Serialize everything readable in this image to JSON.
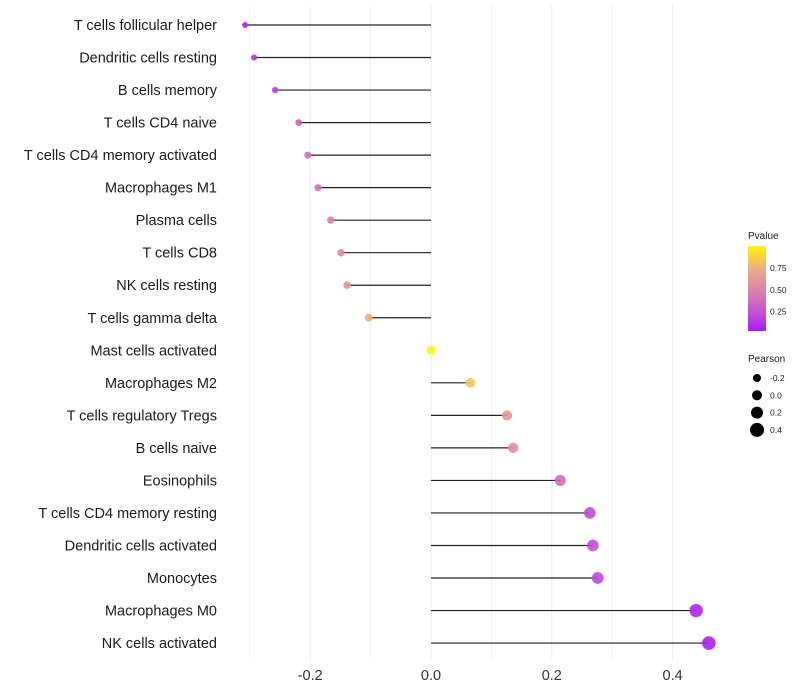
{
  "chart_data": {
    "type": "lollipop",
    "xlabel": "",
    "ylabel": "",
    "xlim": [
      -0.33,
      0.49
    ],
    "xticks": [
      -0.2,
      0.0,
      0.2,
      0.4
    ],
    "xtick_labels": [
      "-0.2",
      "0.0",
      "0.2",
      "0.4"
    ],
    "grid": true,
    "categories": [
      "T cells follicular helper",
      "Dendritic cells resting",
      "B cells memory",
      "T cells CD4 naive",
      "T cells CD4 memory activated",
      "Macrophages M1",
      "Plasma cells",
      "T cells CD8",
      "NK cells resting",
      "T cells gamma delta",
      "Mast cells activated",
      "Macrophages M2",
      "T cells regulatory  Tregs",
      "B cells naive",
      "Eosinophils",
      "T cells CD4 memory resting",
      "Dendritic cells activated",
      "Monocytes",
      "Macrophages M0",
      "NK cells activated"
    ],
    "pearson": [
      -0.308,
      -0.293,
      -0.258,
      -0.219,
      -0.204,
      -0.187,
      -0.166,
      -0.149,
      -0.139,
      -0.103,
      0.0,
      0.065,
      0.126,
      0.136,
      0.214,
      0.263,
      0.268,
      0.276,
      0.439,
      0.46
    ],
    "pvalue": [
      0.05,
      0.1,
      0.15,
      0.3,
      0.35,
      0.38,
      0.45,
      0.55,
      0.6,
      0.75,
      1.0,
      0.82,
      0.6,
      0.55,
      0.35,
      0.2,
      0.2,
      0.18,
      0.05,
      0.03
    ],
    "legend": {
      "color_title": "Pvalue",
      "color_ticks": [
        0.25,
        0.5,
        0.75
      ],
      "color_tick_labels": [
        "0.25",
        "0.50",
        "0.75"
      ],
      "size_title": "Pearson",
      "size_values": [
        -0.2,
        0.0,
        0.2,
        0.4
      ],
      "size_labels": [
        "-0.2",
        "0.0",
        "0.2",
        "0.4"
      ],
      "placement": "right"
    },
    "colors": {
      "low": "#A51CF5",
      "mid": "#DC86A6",
      "high": "#FFF700"
    }
  }
}
